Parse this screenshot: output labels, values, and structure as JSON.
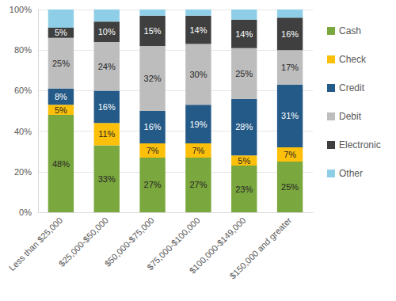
{
  "chart_data": {
    "type": "bar",
    "stacked": true,
    "grid": true,
    "legend": "right",
    "data_labels": true,
    "categories": [
      "Less than $25,000",
      "$25,000-$50,000",
      "$50,000-$75,000",
      "$75,000-$100,000",
      "$100,000-$149,000",
      "$150,000 and greater"
    ],
    "ylim": [
      0,
      100
    ],
    "yticks": [
      {
        "value": 0,
        "label": "0%"
      },
      {
        "value": 20,
        "label": "20%"
      },
      {
        "value": 40,
        "label": "40%"
      },
      {
        "value": 60,
        "label": "60%"
      },
      {
        "value": 80,
        "label": "80%"
      },
      {
        "value": 100,
        "label": "100%"
      }
    ],
    "series": [
      {
        "name": "Cash",
        "color": "#7aa73e",
        "values": [
          48,
          33,
          27,
          27,
          23,
          25
        ],
        "value_labels": [
          "48%",
          "33%",
          "27%",
          "27%",
          "23%",
          "25%"
        ]
      },
      {
        "name": "Check",
        "color": "#fcc00a",
        "values": [
          5,
          11,
          7,
          7,
          5,
          7
        ],
        "value_labels": [
          "5%",
          "11%",
          "7%",
          "7%",
          "5%",
          "7%"
        ]
      },
      {
        "name": "Credit",
        "color": "#245a87",
        "values": [
          8,
          16,
          16,
          19,
          28,
          31
        ],
        "value_labels": [
          "8%",
          "16%",
          "16%",
          "19%",
          "28%",
          "31%"
        ]
      },
      {
        "name": "Debit",
        "color": "#bdbdbd",
        "values": [
          25,
          24,
          32,
          30,
          25,
          17
        ],
        "value_labels": [
          "25%",
          "24%",
          "32%",
          "30%",
          "25%",
          "17%"
        ]
      },
      {
        "name": "Electronic",
        "color": "#3f3f3f",
        "values": [
          5,
          10,
          15,
          14,
          14,
          16
        ],
        "value_labels": [
          "5%",
          "10%",
          "15%",
          "14%",
          "14%",
          "16%"
        ]
      },
      {
        "name": "Other",
        "color": "#8ecfe7",
        "values": [
          9,
          6,
          3,
          3,
          5,
          4
        ],
        "data_labels": false
      }
    ]
  }
}
